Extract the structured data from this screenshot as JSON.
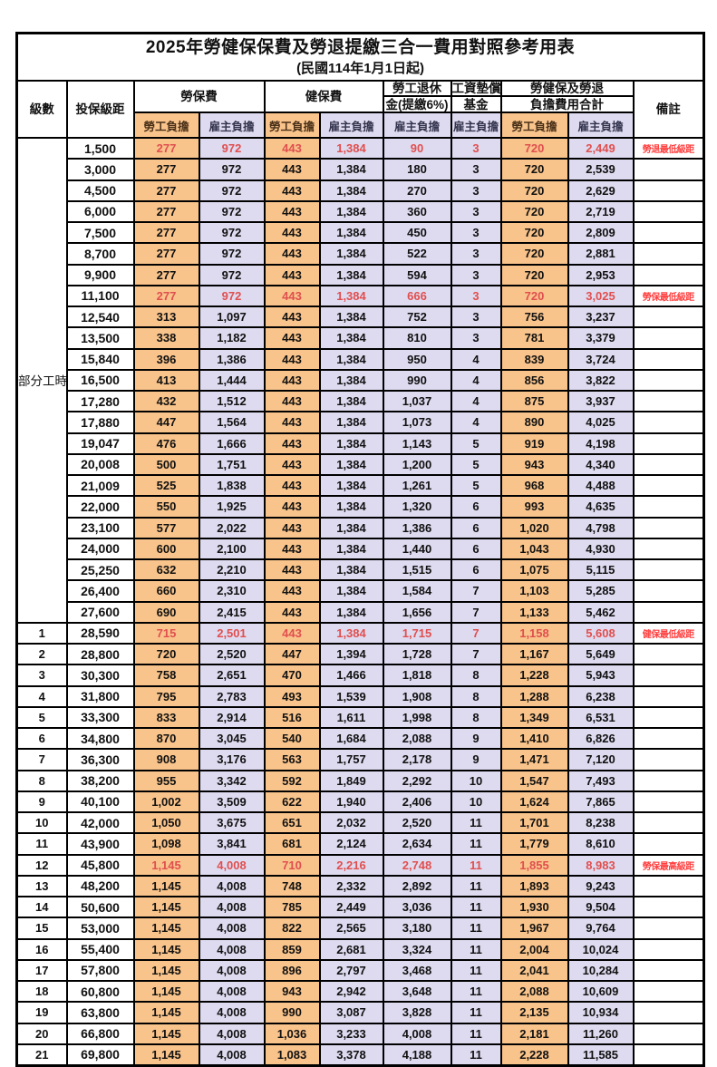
{
  "title": "2025年勞健保保費及勞退提繳三合一費用對照參考用表",
  "subtitle": "(民國114年1月1日起)",
  "columns": {
    "level": "級數",
    "bracket": "投保級距",
    "labor_fee": "勞保費",
    "health_fee": "健保費",
    "pension_line1": "勞工退休",
    "pension_line2": "金(提繳6%)",
    "wage_fund_line1": "工資墊償",
    "wage_fund_line2": "基金",
    "total_line1": "勞健保及勞退",
    "total_line2": "負擔費用合計",
    "remark": "備註",
    "employee_share": "勞工負擔",
    "employer_share": "雇主負擔"
  },
  "part_time_label": "部分工時",
  "colors": {
    "employee_bg": "#F9C48B",
    "employer_bg": "#DEDBF0",
    "highlight_text": "#E04F4F",
    "remark_text": "#FF4040",
    "border": "#000000"
  },
  "rows": [
    {
      "level": "",
      "bracket": "1,500",
      "values": [
        "277",
        "972",
        "443",
        "1,384",
        "90",
        "3",
        "720",
        "2,449"
      ],
      "remark": "勞退最低級距",
      "highlight": true
    },
    {
      "level": "",
      "bracket": "3,000",
      "values": [
        "277",
        "972",
        "443",
        "1,384",
        "180",
        "3",
        "720",
        "2,539"
      ],
      "remark": "",
      "highlight": false
    },
    {
      "level": "",
      "bracket": "4,500",
      "values": [
        "277",
        "972",
        "443",
        "1,384",
        "270",
        "3",
        "720",
        "2,629"
      ],
      "remark": "",
      "highlight": false
    },
    {
      "level": "",
      "bracket": "6,000",
      "values": [
        "277",
        "972",
        "443",
        "1,384",
        "360",
        "3",
        "720",
        "2,719"
      ],
      "remark": "",
      "highlight": false
    },
    {
      "level": "",
      "bracket": "7,500",
      "values": [
        "277",
        "972",
        "443",
        "1,384",
        "450",
        "3",
        "720",
        "2,809"
      ],
      "remark": "",
      "highlight": false
    },
    {
      "level": "",
      "bracket": "8,700",
      "values": [
        "277",
        "972",
        "443",
        "1,384",
        "522",
        "3",
        "720",
        "2,881"
      ],
      "remark": "",
      "highlight": false
    },
    {
      "level": "",
      "bracket": "9,900",
      "values": [
        "277",
        "972",
        "443",
        "1,384",
        "594",
        "3",
        "720",
        "2,953"
      ],
      "remark": "",
      "highlight": false
    },
    {
      "level": "",
      "bracket": "11,100",
      "values": [
        "277",
        "972",
        "443",
        "1,384",
        "666",
        "3",
        "720",
        "3,025"
      ],
      "remark": "勞保最低級距",
      "highlight": true
    },
    {
      "level": "",
      "bracket": "12,540",
      "values": [
        "313",
        "1,097",
        "443",
        "1,384",
        "752",
        "3",
        "756",
        "3,237"
      ],
      "remark": "",
      "highlight": false
    },
    {
      "level": "",
      "bracket": "13,500",
      "values": [
        "338",
        "1,182",
        "443",
        "1,384",
        "810",
        "3",
        "781",
        "3,379"
      ],
      "remark": "",
      "highlight": false
    },
    {
      "level": "",
      "bracket": "15,840",
      "values": [
        "396",
        "1,386",
        "443",
        "1,384",
        "950",
        "4",
        "839",
        "3,724"
      ],
      "remark": "",
      "highlight": false
    },
    {
      "level": "",
      "bracket": "16,500",
      "values": [
        "413",
        "1,444",
        "443",
        "1,384",
        "990",
        "4",
        "856",
        "3,822"
      ],
      "remark": "",
      "highlight": false
    },
    {
      "level": "",
      "bracket": "17,280",
      "values": [
        "432",
        "1,512",
        "443",
        "1,384",
        "1,037",
        "4",
        "875",
        "3,937"
      ],
      "remark": "",
      "highlight": false
    },
    {
      "level": "",
      "bracket": "17,880",
      "values": [
        "447",
        "1,564",
        "443",
        "1,384",
        "1,073",
        "4",
        "890",
        "4,025"
      ],
      "remark": "",
      "highlight": false
    },
    {
      "level": "",
      "bracket": "19,047",
      "values": [
        "476",
        "1,666",
        "443",
        "1,384",
        "1,143",
        "5",
        "919",
        "4,198"
      ],
      "remark": "",
      "highlight": false
    },
    {
      "level": "",
      "bracket": "20,008",
      "values": [
        "500",
        "1,751",
        "443",
        "1,384",
        "1,200",
        "5",
        "943",
        "4,340"
      ],
      "remark": "",
      "highlight": false
    },
    {
      "level": "",
      "bracket": "21,009",
      "values": [
        "525",
        "1,838",
        "443",
        "1,384",
        "1,261",
        "5",
        "968",
        "4,488"
      ],
      "remark": "",
      "highlight": false
    },
    {
      "level": "",
      "bracket": "22,000",
      "values": [
        "550",
        "1,925",
        "443",
        "1,384",
        "1,320",
        "6",
        "993",
        "4,635"
      ],
      "remark": "",
      "highlight": false
    },
    {
      "level": "",
      "bracket": "23,100",
      "values": [
        "577",
        "2,022",
        "443",
        "1,384",
        "1,386",
        "6",
        "1,020",
        "4,798"
      ],
      "remark": "",
      "highlight": false
    },
    {
      "level": "",
      "bracket": "24,000",
      "values": [
        "600",
        "2,100",
        "443",
        "1,384",
        "1,440",
        "6",
        "1,043",
        "4,930"
      ],
      "remark": "",
      "highlight": false
    },
    {
      "level": "",
      "bracket": "25,250",
      "values": [
        "632",
        "2,210",
        "443",
        "1,384",
        "1,515",
        "6",
        "1,075",
        "5,115"
      ],
      "remark": "",
      "highlight": false
    },
    {
      "level": "",
      "bracket": "26,400",
      "values": [
        "660",
        "2,310",
        "443",
        "1,384",
        "1,584",
        "7",
        "1,103",
        "5,285"
      ],
      "remark": "",
      "highlight": false
    },
    {
      "level": "",
      "bracket": "27,600",
      "values": [
        "690",
        "2,415",
        "443",
        "1,384",
        "1,656",
        "7",
        "1,133",
        "5,462"
      ],
      "remark": "",
      "highlight": false
    },
    {
      "level": "1",
      "bracket": "28,590",
      "values": [
        "715",
        "2,501",
        "443",
        "1,384",
        "1,715",
        "7",
        "1,158",
        "5,608"
      ],
      "remark": "健保最低級距",
      "highlight": true
    },
    {
      "level": "2",
      "bracket": "28,800",
      "values": [
        "720",
        "2,520",
        "447",
        "1,394",
        "1,728",
        "7",
        "1,167",
        "5,649"
      ],
      "remark": "",
      "highlight": false
    },
    {
      "level": "3",
      "bracket": "30,300",
      "values": [
        "758",
        "2,651",
        "470",
        "1,466",
        "1,818",
        "8",
        "1,228",
        "5,943"
      ],
      "remark": "",
      "highlight": false
    },
    {
      "level": "4",
      "bracket": "31,800",
      "values": [
        "795",
        "2,783",
        "493",
        "1,539",
        "1,908",
        "8",
        "1,288",
        "6,238"
      ],
      "remark": "",
      "highlight": false
    },
    {
      "level": "5",
      "bracket": "33,300",
      "values": [
        "833",
        "2,914",
        "516",
        "1,611",
        "1,998",
        "8",
        "1,349",
        "6,531"
      ],
      "remark": "",
      "highlight": false
    },
    {
      "level": "6",
      "bracket": "34,800",
      "values": [
        "870",
        "3,045",
        "540",
        "1,684",
        "2,088",
        "9",
        "1,410",
        "6,826"
      ],
      "remark": "",
      "highlight": false
    },
    {
      "level": "7",
      "bracket": "36,300",
      "values": [
        "908",
        "3,176",
        "563",
        "1,757",
        "2,178",
        "9",
        "1,471",
        "7,120"
      ],
      "remark": "",
      "highlight": false
    },
    {
      "level": "8",
      "bracket": "38,200",
      "values": [
        "955",
        "3,342",
        "592",
        "1,849",
        "2,292",
        "10",
        "1,547",
        "7,493"
      ],
      "remark": "",
      "highlight": false
    },
    {
      "level": "9",
      "bracket": "40,100",
      "values": [
        "1,002",
        "3,509",
        "622",
        "1,940",
        "2,406",
        "10",
        "1,624",
        "7,865"
      ],
      "remark": "",
      "highlight": false
    },
    {
      "level": "10",
      "bracket": "42,000",
      "values": [
        "1,050",
        "3,675",
        "651",
        "2,032",
        "2,520",
        "11",
        "1,701",
        "8,238"
      ],
      "remark": "",
      "highlight": false
    },
    {
      "level": "11",
      "bracket": "43,900",
      "values": [
        "1,098",
        "3,841",
        "681",
        "2,124",
        "2,634",
        "11",
        "1,779",
        "8,610"
      ],
      "remark": "",
      "highlight": false
    },
    {
      "level": "12",
      "bracket": "45,800",
      "values": [
        "1,145",
        "4,008",
        "710",
        "2,216",
        "2,748",
        "11",
        "1,855",
        "8,983"
      ],
      "remark": "勞保最高級距",
      "highlight": true
    },
    {
      "level": "13",
      "bracket": "48,200",
      "values": [
        "1,145",
        "4,008",
        "748",
        "2,332",
        "2,892",
        "11",
        "1,893",
        "9,243"
      ],
      "remark": "",
      "highlight": false
    },
    {
      "level": "14",
      "bracket": "50,600",
      "values": [
        "1,145",
        "4,008",
        "785",
        "2,449",
        "3,036",
        "11",
        "1,930",
        "9,504"
      ],
      "remark": "",
      "highlight": false
    },
    {
      "level": "15",
      "bracket": "53,000",
      "values": [
        "1,145",
        "4,008",
        "822",
        "2,565",
        "3,180",
        "11",
        "1,967",
        "9,764"
      ],
      "remark": "",
      "highlight": false
    },
    {
      "level": "16",
      "bracket": "55,400",
      "values": [
        "1,145",
        "4,008",
        "859",
        "2,681",
        "3,324",
        "11",
        "2,004",
        "10,024"
      ],
      "remark": "",
      "highlight": false
    },
    {
      "level": "17",
      "bracket": "57,800",
      "values": [
        "1,145",
        "4,008",
        "896",
        "2,797",
        "3,468",
        "11",
        "2,041",
        "10,284"
      ],
      "remark": "",
      "highlight": false
    },
    {
      "level": "18",
      "bracket": "60,800",
      "values": [
        "1,145",
        "4,008",
        "943",
        "2,942",
        "3,648",
        "11",
        "2,088",
        "10,609"
      ],
      "remark": "",
      "highlight": false
    },
    {
      "level": "19",
      "bracket": "63,800",
      "values": [
        "1,145",
        "4,008",
        "990",
        "3,087",
        "3,828",
        "11",
        "2,135",
        "10,934"
      ],
      "remark": "",
      "highlight": false
    },
    {
      "level": "20",
      "bracket": "66,800",
      "values": [
        "1,145",
        "4,008",
        "1,036",
        "3,233",
        "4,008",
        "11",
        "2,181",
        "11,260"
      ],
      "remark": "",
      "highlight": false
    },
    {
      "level": "21",
      "bracket": "69,800",
      "values": [
        "1,145",
        "4,008",
        "1,083",
        "3,378",
        "4,188",
        "11",
        "2,228",
        "11,585"
      ],
      "remark": "",
      "highlight": false
    }
  ]
}
